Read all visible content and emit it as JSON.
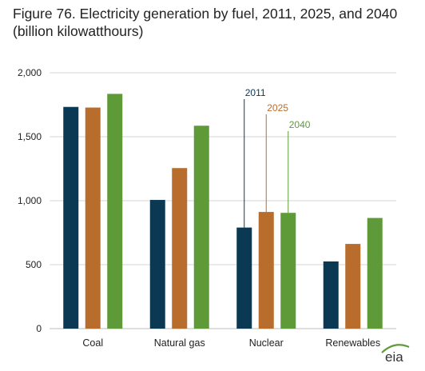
{
  "title": "Figure 76. Electricity generation by fuel, 2011, 2025, and 2040 (billion kilowatthours)",
  "chart_data": {
    "type": "bar",
    "categories": [
      "Coal",
      "Natural gas",
      "Nuclear",
      "Renewables"
    ],
    "series": [
      {
        "name": "2011",
        "values": [
          1733,
          1006,
          790,
          525
        ],
        "color": "#0b3953"
      },
      {
        "name": "2025",
        "values": [
          1728,
          1255,
          912,
          662
        ],
        "color": "#b96d2c"
      },
      {
        "name": "2040",
        "values": [
          1835,
          1586,
          905,
          865
        ],
        "color": "#5e9a38"
      }
    ],
    "ylim": [
      0,
      2000
    ],
    "yticks": [
      0,
      500,
      1000,
      1500,
      2000
    ],
    "ytick_labels": [
      "0",
      "500",
      "1,000",
      "1,500",
      "2,000"
    ],
    "grid": true,
    "legend": "inline annotations above Nuclear bars"
  },
  "logo": {
    "text": "eia"
  }
}
